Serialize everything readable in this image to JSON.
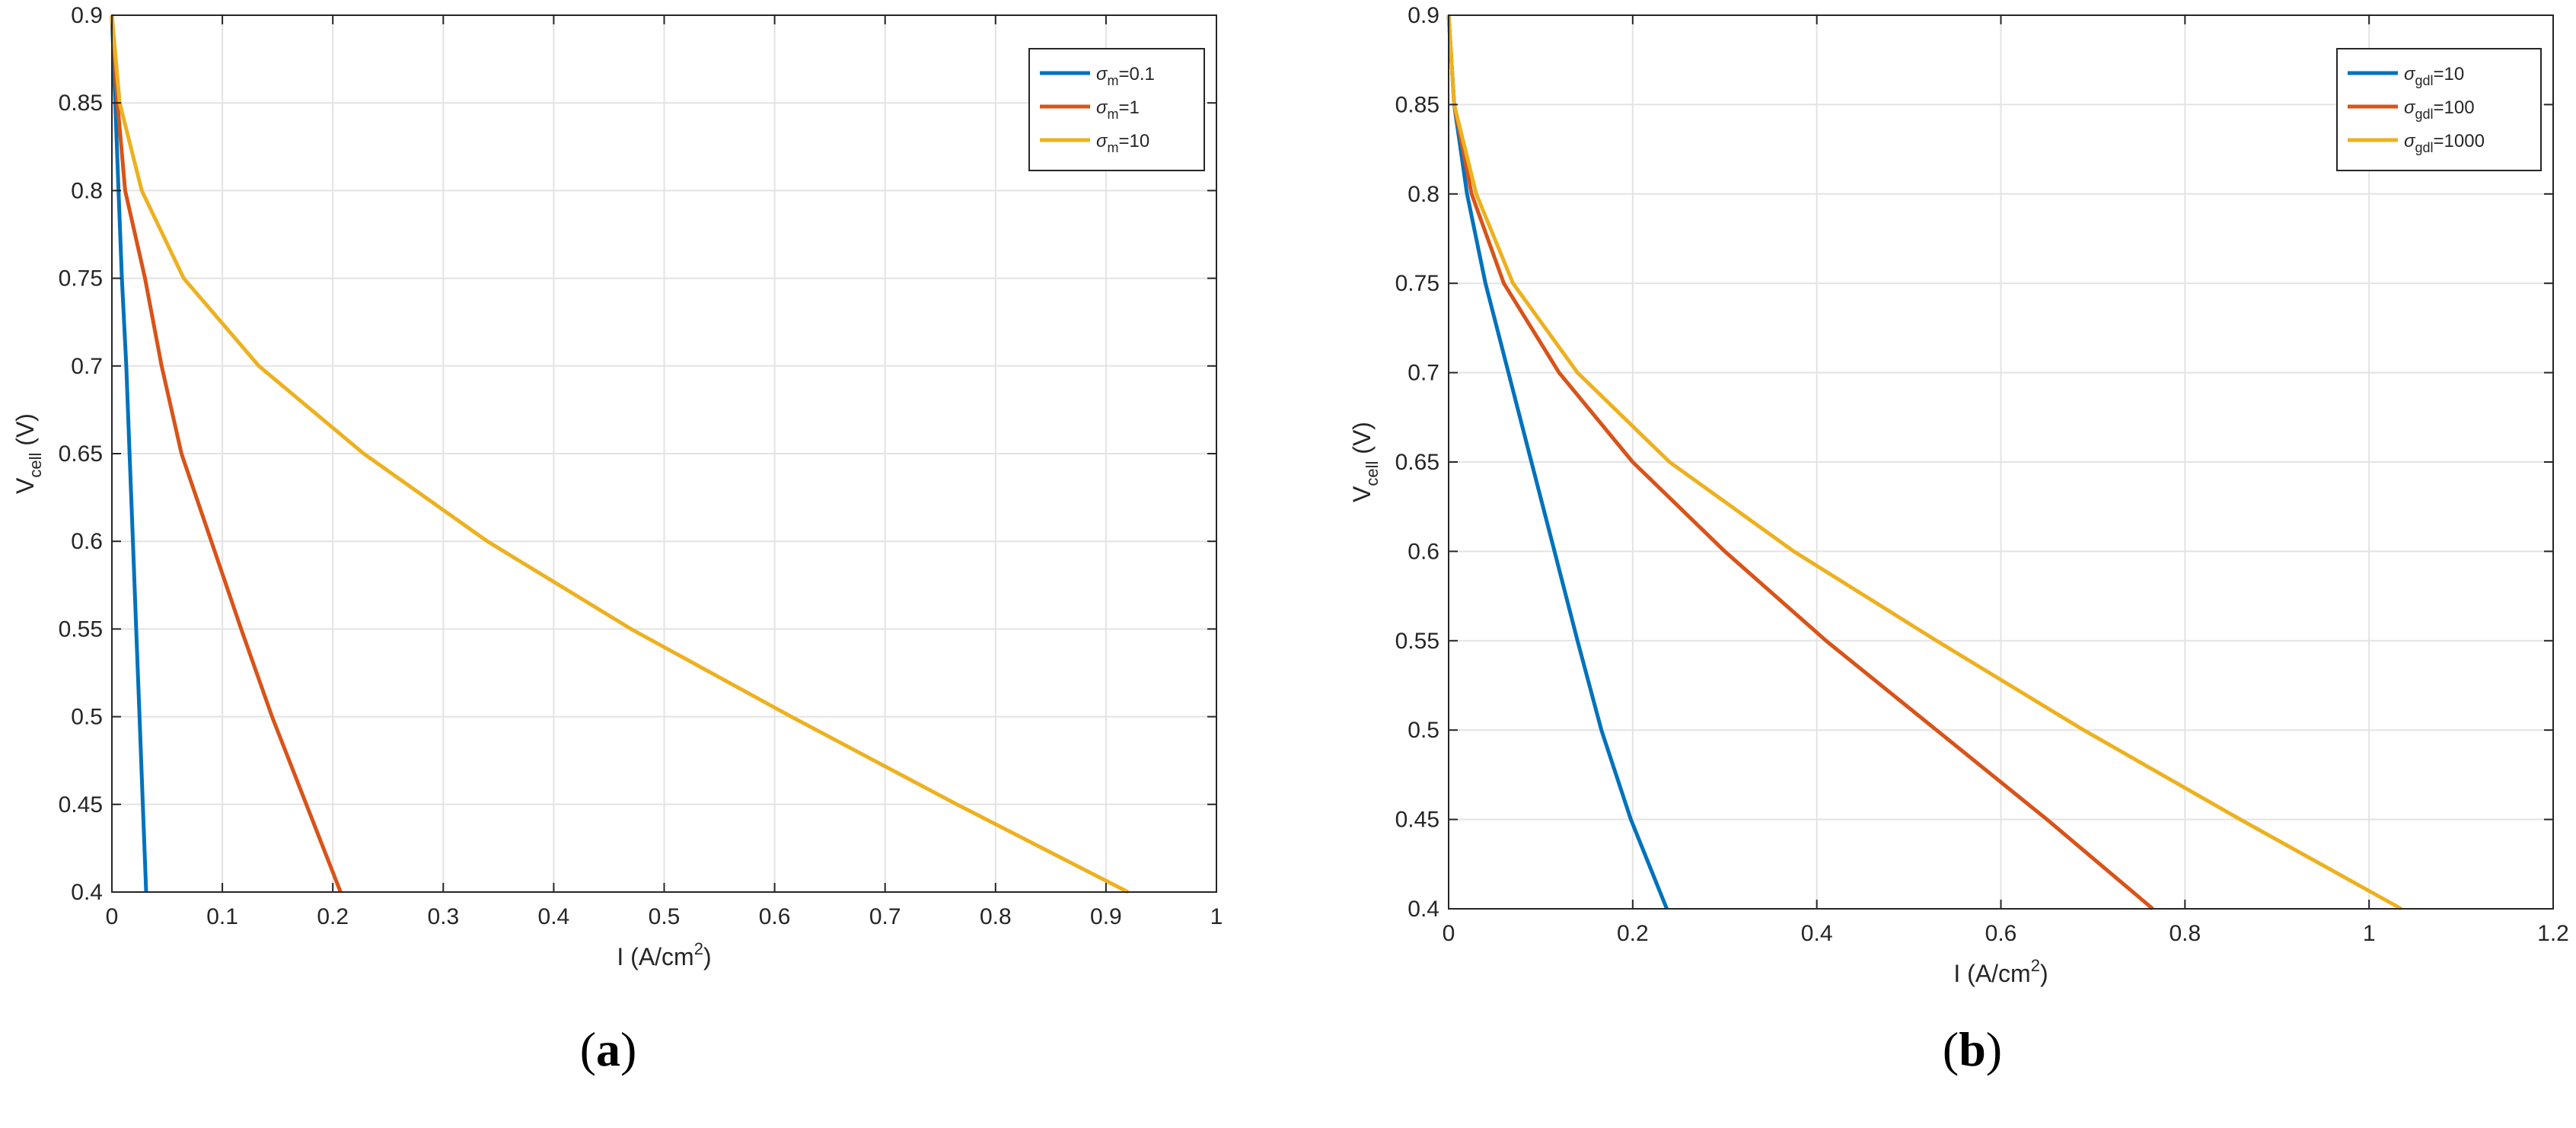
{
  "chart_data": [
    {
      "type": "line",
      "xlabel": "I (A/cm",
      "xlabel_sup": "2",
      "xlabel_tail": ")",
      "ylabel_main": "V",
      "ylabel_sub": "cell",
      "ylabel_tail": " (V)",
      "xlim": [
        0,
        1
      ],
      "ylim": [
        0.4,
        0.9
      ],
      "xticks": [
        "0",
        "0.1",
        "0.2",
        "0.3",
        "0.4",
        "0.5",
        "0.6",
        "0.7",
        "0.8",
        "0.9",
        "1"
      ],
      "yticks": [
        "0.4",
        "0.45",
        "0.5",
        "0.55",
        "0.6",
        "0.65",
        "0.7",
        "0.75",
        "0.8",
        "0.85",
        "0.9"
      ],
      "grid": true,
      "legend_position": "top-right",
      "panel_label": "(a)",
      "series": [
        {
          "name": "σm=0.1",
          "sym": "σ",
          "sub": "m",
          "eq": "=0.1",
          "color": "#0072BD",
          "x": [
            0.0,
            0.003,
            0.006,
            0.009,
            0.013,
            0.016,
            0.019,
            0.022,
            0.025,
            0.028,
            0.031
          ],
          "y": [
            0.9,
            0.85,
            0.8,
            0.75,
            0.7,
            0.65,
            0.6,
            0.55,
            0.5,
            0.45,
            0.4
          ]
        },
        {
          "name": "σm=1",
          "sym": "σ",
          "sub": "m",
          "eq": "=1",
          "color": "#D95319",
          "x": [
            0.0,
            0.005,
            0.012,
            0.03,
            0.045,
            0.063,
            0.09,
            0.117,
            0.145,
            0.176,
            0.207
          ],
          "y": [
            0.9,
            0.85,
            0.8,
            0.75,
            0.7,
            0.65,
            0.6,
            0.55,
            0.5,
            0.45,
            0.4
          ]
        },
        {
          "name": "σm=10",
          "sym": "σ",
          "sub": "m",
          "eq": "=10",
          "color": "#EDB120",
          "x": [
            0.0,
            0.007,
            0.027,
            0.065,
            0.133,
            0.228,
            0.34,
            0.47,
            0.615,
            0.765,
            0.92
          ],
          "y": [
            0.9,
            0.85,
            0.8,
            0.75,
            0.7,
            0.65,
            0.6,
            0.55,
            0.5,
            0.45,
            0.4
          ]
        }
      ]
    },
    {
      "type": "line",
      "xlabel": "I (A/cm",
      "xlabel_sup": "2",
      "xlabel_tail": ")",
      "ylabel_main": "V",
      "ylabel_sub": "cell",
      "ylabel_tail": " (V)",
      "xlim": [
        0,
        1.2
      ],
      "ylim": [
        0.4,
        0.9
      ],
      "xticks": [
        "0",
        "0.2",
        "0.4",
        "0.6",
        "0.8",
        "1",
        "1.2"
      ],
      "yticks": [
        "0.4",
        "0.45",
        "0.5",
        "0.55",
        "0.6",
        "0.65",
        "0.7",
        "0.75",
        "0.8",
        "0.85",
        "0.9"
      ],
      "grid": true,
      "legend_position": "top-right",
      "panel_label": "(b)",
      "series": [
        {
          "name": "σgdl=10",
          "sym": "σ",
          "sub": "gdl",
          "eq": "=10",
          "color": "#0072BD",
          "x": [
            0.0,
            0.006,
            0.02,
            0.04,
            0.065,
            0.09,
            0.115,
            0.14,
            0.166,
            0.198,
            0.237
          ],
          "y": [
            0.9,
            0.85,
            0.8,
            0.75,
            0.7,
            0.65,
            0.6,
            0.55,
            0.5,
            0.45,
            0.4
          ]
        },
        {
          "name": "σgdl=100",
          "sym": "σ",
          "sub": "gdl",
          "eq": "=100",
          "color": "#D95319",
          "x": [
            0.0,
            0.006,
            0.025,
            0.06,
            0.12,
            0.2,
            0.3,
            0.41,
            0.53,
            0.65,
            0.765
          ],
          "y": [
            0.9,
            0.85,
            0.8,
            0.75,
            0.7,
            0.65,
            0.6,
            0.55,
            0.5,
            0.45,
            0.4
          ]
        },
        {
          "name": "σgdl=1000",
          "sym": "σ",
          "sub": "gdl",
          "eq": "=1000",
          "color": "#EDB120",
          "x": [
            0.0,
            0.006,
            0.03,
            0.07,
            0.14,
            0.24,
            0.375,
            0.53,
            0.69,
            0.86,
            1.035
          ],
          "y": [
            0.9,
            0.85,
            0.8,
            0.75,
            0.7,
            0.65,
            0.6,
            0.55,
            0.5,
            0.45,
            0.4
          ]
        }
      ]
    }
  ]
}
